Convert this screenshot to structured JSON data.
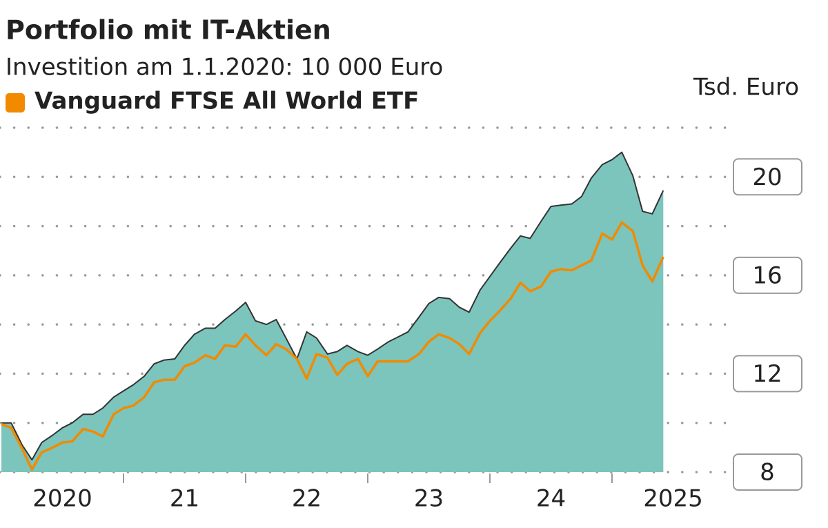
{
  "chart_data": {
    "type": "area",
    "title": "Portfolio mit IT-Aktien",
    "subtitle": "Investition am 1.1.2020: 10 000 Euro",
    "y_label": "Tsd. Euro",
    "x": [
      2020,
      2020.08,
      2020.17,
      2020.25,
      2020.33,
      2020.42,
      2020.5,
      2020.58,
      2020.67,
      2020.75,
      2020.83,
      2020.92,
      2021,
      2021.08,
      2021.17,
      2021.25,
      2021.33,
      2021.42,
      2021.5,
      2021.58,
      2021.67,
      2021.75,
      2021.83,
      2021.92,
      2022,
      2022.08,
      2022.17,
      2022.25,
      2022.33,
      2022.42,
      2022.5,
      2022.58,
      2022.67,
      2022.75,
      2022.83,
      2022.92,
      2023,
      2023.08,
      2023.17,
      2023.25,
      2023.33,
      2023.42,
      2023.5,
      2023.58,
      2023.67,
      2023.75,
      2023.83,
      2023.92,
      2024,
      2024.08,
      2024.17,
      2024.25,
      2024.33,
      2024.42,
      2024.5,
      2024.58,
      2024.67,
      2024.75,
      2024.83,
      2024.92,
      2025,
      2025.08,
      2025.17,
      2025.25,
      2025.33,
      2025.42
    ],
    "series": [
      {
        "type": "area",
        "color": "#7bc5bc",
        "line_color": "#333333",
        "values": [
          10.0,
          10.0,
          9.1,
          8.5,
          9.2,
          9.5,
          9.8,
          10.0,
          10.35,
          10.35,
          10.6,
          11.05,
          11.3,
          11.55,
          11.9,
          12.4,
          12.55,
          12.6,
          13.15,
          13.6,
          13.85,
          13.85,
          14.2,
          14.55,
          14.9,
          14.15,
          14.0,
          14.2,
          13.45,
          12.6,
          13.7,
          13.45,
          12.8,
          12.9,
          13.15,
          12.9,
          12.75,
          13.0,
          13.3,
          13.5,
          13.7,
          14.3,
          14.85,
          15.1,
          15.05,
          14.7,
          14.5,
          15.4,
          15.95,
          16.5,
          17.1,
          17.6,
          17.5,
          18.2,
          18.8,
          18.85,
          18.9,
          19.2,
          19.95,
          20.5,
          20.7,
          21.0,
          20.05,
          18.6,
          18.5,
          19.45
        ]
      },
      {
        "type": "line",
        "name": "Vanguard FTSE All World ETF",
        "color": "#f28a00",
        "values": [
          9.95,
          9.8,
          8.95,
          8.1,
          8.8,
          9.0,
          9.2,
          9.25,
          9.75,
          9.65,
          9.45,
          10.35,
          10.6,
          10.7,
          11.05,
          11.65,
          11.75,
          11.75,
          12.3,
          12.45,
          12.75,
          12.6,
          13.15,
          13.1,
          13.6,
          13.15,
          12.75,
          13.2,
          13.0,
          12.6,
          11.8,
          12.8,
          12.65,
          11.95,
          12.4,
          12.6,
          11.9,
          12.5,
          12.5,
          12.5,
          12.5,
          12.8,
          13.3,
          13.6,
          13.45,
          13.2,
          12.8,
          13.65,
          14.15,
          14.55,
          15.05,
          15.7,
          15.35,
          15.55,
          16.15,
          16.25,
          16.2,
          16.4,
          16.6,
          17.7,
          17.45,
          18.15,
          17.8,
          16.4,
          15.75,
          16.75
        ]
      }
    ],
    "xlim": [
      2020,
      2026
    ],
    "xticks": [
      2021,
      2022,
      2023,
      2024,
      2025
    ],
    "xtick_labels": [
      {
        "value": 2020.5,
        "label": "2020"
      },
      {
        "value": 2021.5,
        "label": "21"
      },
      {
        "value": 2022.5,
        "label": "22"
      },
      {
        "value": 2023.5,
        "label": "23"
      },
      {
        "value": 2024.5,
        "label": "24"
      },
      {
        "value": 2025.5,
        "label": "2025"
      }
    ],
    "ylim": [
      8,
      22
    ],
    "yticks": [
      8,
      12,
      16,
      20
    ],
    "ygrid": [
      8,
      10,
      12,
      14,
      16,
      18,
      20,
      22
    ],
    "grid": true
  }
}
